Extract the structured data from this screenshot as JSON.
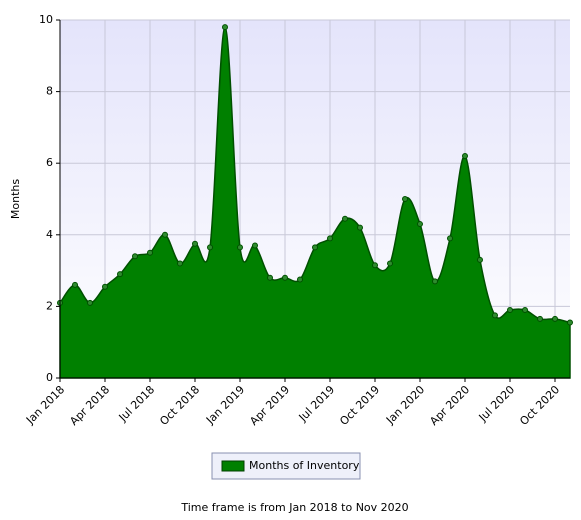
{
  "chart_data": {
    "type": "area",
    "ylabel": "Months",
    "categories": [
      "Jan 2018",
      null,
      null,
      "Apr 2018",
      null,
      null,
      "Jul 2018",
      null,
      null,
      "Oct 2018",
      null,
      null,
      "Jan 2019",
      null,
      null,
      "Apr 2019",
      null,
      null,
      "Jul 2019",
      null,
      null,
      "Oct 2019",
      null,
      null,
      "Jan 2020",
      null,
      null,
      "Apr 2020",
      null,
      null,
      "Jul 2020",
      null,
      null,
      "Oct 2020",
      null
    ],
    "series": [
      {
        "name": "Months of Inventory",
        "color": "#008000",
        "values": [
          2.1,
          2.6,
          2.1,
          2.55,
          2.9,
          3.4,
          3.5,
          4.0,
          3.2,
          3.75,
          3.65,
          9.8,
          3.65,
          3.7,
          2.8,
          2.8,
          2.75,
          3.65,
          3.9,
          4.45,
          4.2,
          3.15,
          3.2,
          5.0,
          4.3,
          2.7,
          3.9,
          6.2,
          3.3,
          1.75,
          1.9,
          1.9,
          1.65,
          1.65,
          1.55
        ]
      }
    ],
    "ylim": [
      0,
      10
    ],
    "yticks": [
      0,
      2,
      4,
      6,
      8,
      10
    ],
    "grid": true,
    "footer": "Time frame is from Jan 2018 to Nov 2020"
  }
}
